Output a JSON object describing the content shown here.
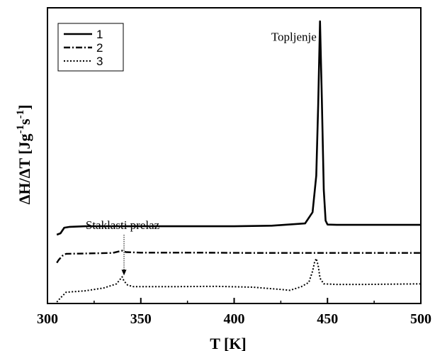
{
  "chart_data": {
    "type": "line",
    "xlabel": "T [K]",
    "ylabel": "ΔH/ΔT [Jg⁻¹s⁻¹]",
    "xlim": [
      300,
      500
    ],
    "x_ticks": [
      "300",
      "350",
      "400",
      "450",
      "500"
    ],
    "y_ticks": [],
    "legend_position": "top-left",
    "annotations": [
      {
        "text": "Topljenje",
        "x": 432,
        "y": 0.93,
        "arrow": false
      },
      {
        "text": "Staklasti prelaz",
        "x": 341,
        "y": 0.26,
        "arrow": true,
        "arrow_to_y": 0.095
      }
    ],
    "series": [
      {
        "name": "1",
        "style": "solid",
        "x": [
          305,
          307,
          309,
          312,
          320,
          340,
          360,
          380,
          400,
          420,
          438,
          442,
          444,
          445,
          446,
          447,
          448,
          449,
          450,
          455,
          470,
          500
        ],
        "y": [
          0.24,
          0.245,
          0.265,
          0.268,
          0.27,
          0.27,
          0.27,
          0.27,
          0.27,
          0.272,
          0.28,
          0.32,
          0.45,
          0.7,
          1.0,
          0.72,
          0.4,
          0.29,
          0.276,
          0.275,
          0.275,
          0.275
        ]
      },
      {
        "name": "2",
        "style": "dash-dot",
        "x": [
          305,
          306,
          308,
          310,
          320,
          335,
          340,
          342,
          350,
          380,
          410,
          440,
          470,
          500
        ],
        "y": [
          0.14,
          0.15,
          0.165,
          0.172,
          0.173,
          0.175,
          0.183,
          0.178,
          0.176,
          0.176,
          0.175,
          0.175,
          0.175,
          0.175
        ]
      },
      {
        "name": "3",
        "style": "dotted",
        "x": [
          305,
          307,
          310,
          320,
          330,
          337,
          340,
          341,
          343,
          346,
          355,
          370,
          390,
          410,
          425,
          430,
          436,
          440,
          442,
          443,
          444,
          445,
          446,
          448,
          455,
          470,
          500
        ],
        "y": [
          0.0,
          0.015,
          0.035,
          0.04,
          0.05,
          0.065,
          0.09,
          0.075,
          0.06,
          0.055,
          0.055,
          0.055,
          0.056,
          0.053,
          0.045,
          0.042,
          0.055,
          0.07,
          0.11,
          0.14,
          0.155,
          0.13,
          0.085,
          0.065,
          0.063,
          0.063,
          0.065
        ]
      }
    ]
  }
}
